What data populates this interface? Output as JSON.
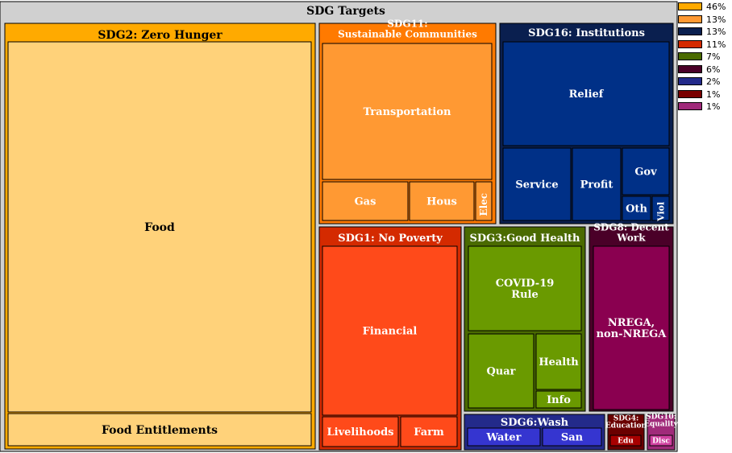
{
  "chart_data": {
    "type": "treemap",
    "title": "SDG Targets",
    "groups": [
      {
        "name": "SDG2: Zero Hunger",
        "color": "#ffaa00",
        "share": "46%",
        "children": [
          {
            "name": "Food",
            "color": "#ffd27a"
          },
          {
            "name": "Food Entitlements",
            "color": "#ffd27a"
          }
        ]
      },
      {
        "name": "SDG11:\nSustainable Communities",
        "color": "#ff7a00",
        "share": "13%",
        "children": [
          {
            "name": "Transportation",
            "color": "#ff9933"
          },
          {
            "name": "Gas",
            "color": "#ff9933"
          },
          {
            "name": "Hous",
            "color": "#ff9933"
          },
          {
            "name": "Elec",
            "color": "#ff9933"
          }
        ]
      },
      {
        "name": "SDG16: Institutions",
        "color": "#0a1f4f",
        "share": "13%",
        "children": [
          {
            "name": "Relief",
            "color": "#003087"
          },
          {
            "name": "Service",
            "color": "#003087"
          },
          {
            "name": "Profit",
            "color": "#003087"
          },
          {
            "name": "Gov",
            "color": "#003087"
          },
          {
            "name": "Oth",
            "color": "#003087"
          },
          {
            "name": "Viol",
            "color": "#003087"
          }
        ]
      },
      {
        "name": "SDG1: No Poverty",
        "color": "#d42a00",
        "share": "11%",
        "children": [
          {
            "name": "Financial",
            "color": "#ff4a1a"
          },
          {
            "name": "Livelihoods",
            "color": "#ff4a1a"
          },
          {
            "name": "Farm",
            "color": "#ff4a1a"
          }
        ]
      },
      {
        "name": "SDG3:Good Health",
        "color": "#4a6a00",
        "share": "7%",
        "children": [
          {
            "name": "COVID-19\nRule",
            "color": "#6a9a00"
          },
          {
            "name": "Quar",
            "color": "#6a9a00"
          },
          {
            "name": "Health",
            "color": "#6a9a00"
          },
          {
            "name": "Info",
            "color": "#6a9a00"
          }
        ]
      },
      {
        "name": "SDG8: Decent\nWork",
        "color": "#4a0028",
        "share": "6%",
        "children": [
          {
            "name": "NREGA,\nnon-NREGA",
            "color": "#8a0050"
          }
        ]
      },
      {
        "name": "SDG6:Wash",
        "color": "#232a8a",
        "share": "2%",
        "children": [
          {
            "name": "Water",
            "color": "#3535d0"
          },
          {
            "name": "San",
            "color": "#3535d0"
          }
        ]
      },
      {
        "name": "SDG4:\nEducation",
        "color": "#6a0000",
        "share": "1%",
        "children": [
          {
            "name": "Edu",
            "color": "#a80000"
          }
        ]
      },
      {
        "name": "SDG10:\nEquality",
        "color": "#a02a7a",
        "share": "1%",
        "children": [
          {
            "name": "Disc",
            "color": "#d040a0"
          }
        ]
      }
    ],
    "legend": {
      "placement": "right",
      "entries": [
        {
          "label": "46%",
          "color": "#ffaa00"
        },
        {
          "label": "13%",
          "color": "#ff9933"
        },
        {
          "label": "13%",
          "color": "#0a1f4f"
        },
        {
          "label": "11%",
          "color": "#d42a00"
        },
        {
          "label": "7%",
          "color": "#4a6a00"
        },
        {
          "label": "6%",
          "color": "#4a0028"
        },
        {
          "label": "2%",
          "color": "#232a8a"
        },
        {
          "label": "1%",
          "color": "#7a0000"
        },
        {
          "label": "1%",
          "color": "#a02a7a"
        }
      ]
    }
  }
}
